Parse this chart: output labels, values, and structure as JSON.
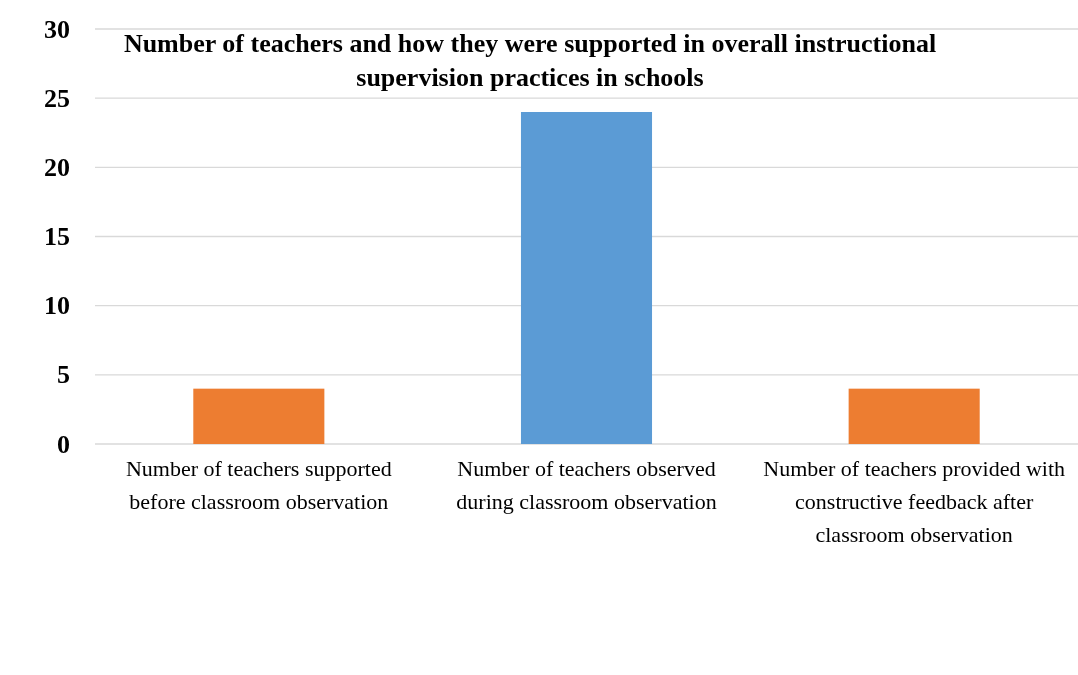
{
  "chart_data": {
    "type": "bar",
    "title": "Number of teachers and how they were supported in overall instructional supervision practices in schools",
    "categories": [
      "Number of teachers supported before classroom observation",
      "Number of teachers observed during classroom observation",
      "Number of teachers provided with constructive feedback after classroom observation"
    ],
    "values": [
      4,
      24,
      4
    ],
    "colors": [
      "#ed7d31",
      "#5b9bd5",
      "#ed7d31"
    ],
    "ylim": [
      0,
      30
    ],
    "yticks": [
      0,
      5,
      10,
      15,
      20,
      25,
      30
    ],
    "grid": "y"
  }
}
